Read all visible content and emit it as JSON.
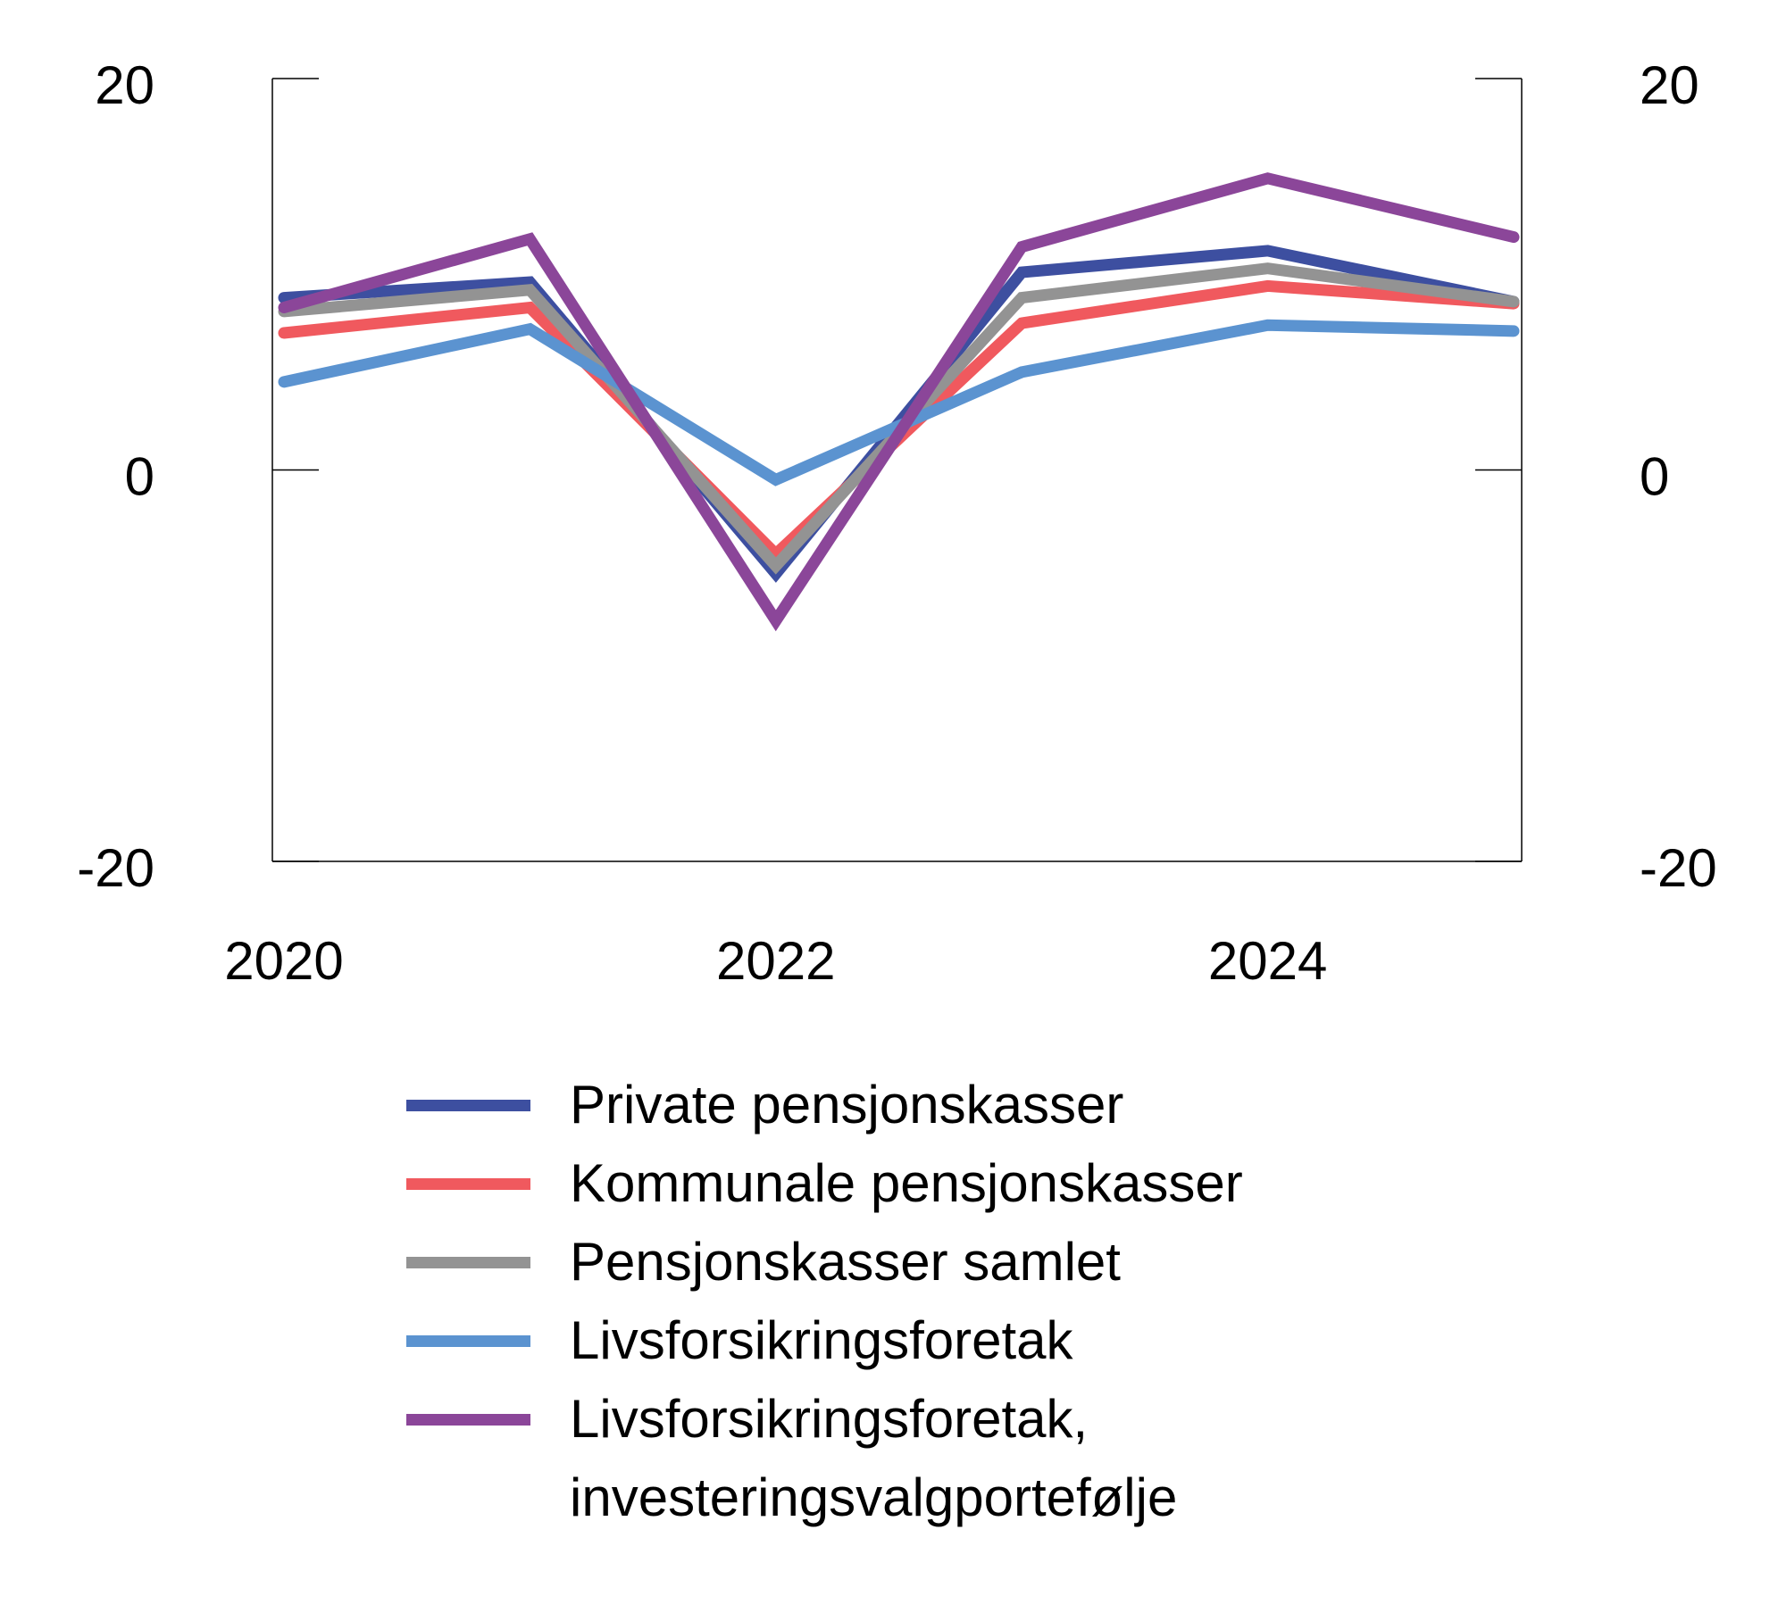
{
  "chart_data": {
    "type": "line",
    "x": [
      2020,
      2021,
      2022,
      2023,
      2024,
      2025
    ],
    "xlim": [
      2020,
      2025
    ],
    "xticks": [
      2020,
      2022,
      2024
    ],
    "ylim": [
      -20,
      20
    ],
    "yticks": [
      -20,
      0,
      20
    ],
    "series": [
      {
        "name": "Private pensjonskasser",
        "color": "#3d4fa0",
        "values": [
          8.8,
          9.6,
          -5.3,
          10.1,
          11.2,
          8.6
        ]
      },
      {
        "name": "Kommunale pensjonskasser",
        "color": "#f0595e",
        "values": [
          7.0,
          8.3,
          -4.3,
          7.5,
          9.4,
          8.5
        ]
      },
      {
        "name": "Pensjonskasser samlet",
        "color": "#939393",
        "values": [
          8.1,
          9.2,
          -4.9,
          8.8,
          10.3,
          8.6
        ]
      },
      {
        "name": "Livsforsikringsforetak",
        "color": "#5b93d0",
        "values": [
          4.5,
          7.2,
          -0.5,
          5.0,
          7.4,
          7.1
        ]
      },
      {
        "name": "Livsforsikringsforetak, investeringsvalgportefølje",
        "color": "#8b4699",
        "values": [
          8.3,
          11.8,
          -7.7,
          11.4,
          14.9,
          11.9
        ]
      }
    ]
  }
}
